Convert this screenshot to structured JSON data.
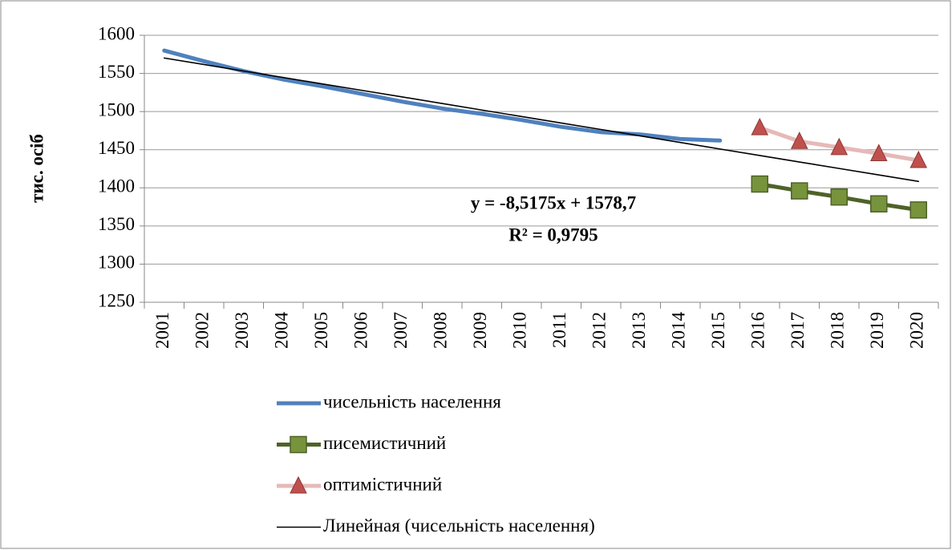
{
  "chart_data": {
    "type": "line",
    "y_label": "тис. осіб",
    "categories": [
      "2001",
      "2002",
      "2003",
      "2004",
      "2005",
      "2006",
      "2007",
      "2008",
      "2009",
      "2010",
      "2011",
      "2012",
      "2013",
      "2014",
      "2015",
      "2016",
      "2017",
      "2018",
      "2019",
      "2020"
    ],
    "series": [
      {
        "name": "чисельність населення",
        "color": "#4f81bd",
        "marker": null,
        "values": [
          1580,
          1566,
          1553,
          1542,
          1533,
          1523,
          1513,
          1504,
          1497,
          1489,
          1480,
          1473,
          1470,
          1464,
          1462,
          null,
          null,
          null,
          null,
          null
        ]
      },
      {
        "name": "писемистичний",
        "color": "#4f6228",
        "marker": "square",
        "marker_color": "#77933c",
        "values": [
          null,
          null,
          null,
          null,
          null,
          null,
          null,
          null,
          null,
          null,
          null,
          null,
          null,
          null,
          null,
          1405,
          1396,
          1388,
          1379,
          1371
        ]
      },
      {
        "name": "оптимістичний",
        "color": "#e6b9b8",
        "marker": "triangle",
        "marker_color": "#c0504d",
        "values": [
          null,
          null,
          null,
          null,
          null,
          null,
          null,
          null,
          null,
          null,
          null,
          null,
          null,
          null,
          null,
          1479,
          1461,
          1453,
          1445,
          1436
        ]
      },
      {
        "name": "Линейная (чисельність населення)",
        "color": "#000000",
        "marker": null,
        "thin": true,
        "values": [
          1570.2,
          1561.7,
          1553.1,
          1544.6,
          1536.1,
          1527.6,
          1519.1,
          1510.6,
          1502.0,
          1493.5,
          1485.0,
          1476.5,
          1468.0,
          1459.5,
          1450.9,
          1442.4,
          1433.9,
          1425.4,
          1416.9,
          1408.4
        ]
      }
    ],
    "annotations": [
      "y = -8,5175x + 1578,7",
      "R² = 0,9795"
    ],
    "ylim": [
      1250,
      1600
    ],
    "yticks": [
      1250,
      1300,
      1350,
      1400,
      1450,
      1500,
      1550,
      1600
    ],
    "grid": true
  }
}
